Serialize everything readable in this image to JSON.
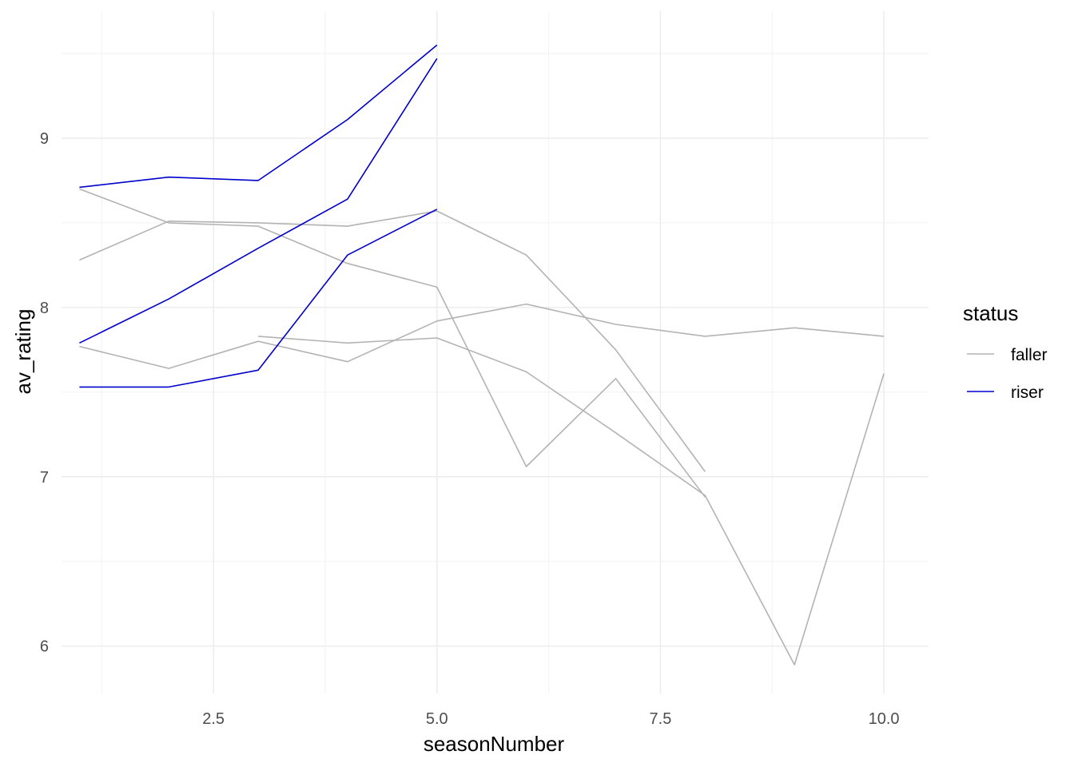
{
  "chart_data": {
    "type": "line",
    "xlabel": "seasonNumber",
    "ylabel": "av_rating",
    "xlim": [
      0.8,
      10.5
    ],
    "ylim": [
      5.72,
      9.75
    ],
    "x_ticks": [
      2.5,
      5.0,
      7.5,
      10.0
    ],
    "x_tick_labels": [
      "2.5",
      "5.0",
      "7.5",
      "10.0"
    ],
    "y_ticks": [
      6,
      7,
      8,
      9
    ],
    "y_tick_labels": [
      "6",
      "7",
      "8",
      "9"
    ],
    "grid": true,
    "legend": {
      "title": "status",
      "position": "right",
      "entries": [
        {
          "label": "faller",
          "color": "#b3b3b3"
        },
        {
          "label": "riser",
          "color": "#0000cd"
        }
      ]
    },
    "series": [
      {
        "group": "faller",
        "color": "#b3b3b3",
        "x": [
          1,
          2,
          3,
          4,
          5,
          6,
          7,
          8
        ],
        "y": [
          8.7,
          8.5,
          8.48,
          8.26,
          8.12,
          7.06,
          7.58,
          6.88
        ]
      },
      {
        "group": "faller",
        "color": "#b3b3b3",
        "x": [
          1,
          2,
          3,
          4,
          5,
          6,
          7,
          8
        ],
        "y": [
          8.28,
          8.51,
          8.5,
          8.48,
          8.57,
          8.31,
          7.75,
          7.03
        ]
      },
      {
        "group": "faller",
        "color": "#b3b3b3",
        "x": [
          1,
          2,
          3,
          4,
          5,
          6,
          7,
          8,
          9,
          10
        ],
        "y": [
          7.77,
          7.64,
          7.8,
          7.68,
          7.92,
          8.02,
          7.9,
          7.83,
          7.88,
          7.83
        ]
      },
      {
        "group": "faller",
        "color": "#b3b3b3",
        "x": [
          3,
          4,
          5,
          6,
          7,
          8,
          9,
          10
        ],
        "y": [
          7.83,
          7.79,
          7.82,
          7.62,
          7.26,
          6.89,
          5.89,
          7.61
        ]
      },
      {
        "group": "riser",
        "color": "#0000cd",
        "x": [
          1,
          2,
          3,
          4,
          5
        ],
        "y": [
          8.71,
          8.77,
          8.75,
          9.11,
          9.55
        ]
      },
      {
        "group": "riser",
        "color": "#0000cd",
        "x": [
          1,
          2,
          3,
          4,
          5
        ],
        "y": [
          7.79,
          8.05,
          8.35,
          8.64,
          9.47
        ]
      },
      {
        "group": "riser",
        "color": "#0000cd",
        "x": [
          1,
          2,
          3,
          4,
          5
        ],
        "y": [
          7.53,
          7.53,
          7.63,
          8.31,
          8.58
        ]
      }
    ]
  }
}
